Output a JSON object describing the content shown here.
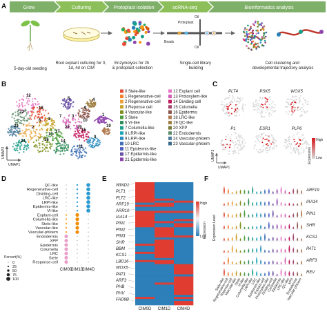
{
  "panels": {
    "a": {
      "letter": "A",
      "steps": [
        "Grow",
        "Culturing",
        "Protoplast isolation",
        "scRNA-seq",
        "Bioinformatics analysis"
      ],
      "beads_label": "Beads",
      "protoplast_label": "Protoplast",
      "oil_label": "Oil",
      "captions": [
        "5-day-old seeding",
        "Root explant culturing for 0, 1d, 4d on CIM",
        "Enzymolysis for 2h & protoplast collection",
        "Single-cell library building",
        "Cell clustering and developmental trajectory analysis"
      ]
    },
    "b": {
      "letter": "B",
      "xlabel": "UMAP1",
      "ylabel": "UMAP2",
      "map_labels": [
        "12",
        "22",
        "18",
        "2",
        "8",
        "17",
        "16",
        "14",
        "3",
        "15",
        "9",
        "5",
        "4",
        "24",
        "11",
        "0",
        "1",
        "19",
        "21",
        "6",
        "13",
        "20",
        "23",
        "10",
        "7"
      ],
      "clusters_left": [
        {
          "label": "0  Stele-like",
          "color": "#e24a33"
        },
        {
          "label": "1  Regenerative-cell",
          "color": "#f08030"
        },
        {
          "label": "2  Regenerative-cell",
          "color": "#e8a33a"
        },
        {
          "label": "3  Reponse cell",
          "color": "#c7a028"
        },
        {
          "label": "4  Vascular-like",
          "color": "#7f8f1f"
        },
        {
          "label": "5  Stele",
          "color": "#4a9d3a"
        },
        {
          "label": "6  VI-like",
          "color": "#2e8b57"
        },
        {
          "label": "7  Columella-like",
          "color": "#1f9e89"
        },
        {
          "label": "8  LRPI-like",
          "color": "#1aa3b5"
        },
        {
          "label": "9  LRPI-like",
          "color": "#2b8cbe"
        },
        {
          "label": "10  LRC",
          "color": "#3f6fb5"
        },
        {
          "label": "11  Epidermis-like",
          "color": "#4b5fbf"
        },
        {
          "label": "17  Epidermis-like",
          "color": "#6a51a3"
        },
        {
          "label": "21  Epidermis-like",
          "color": "#8e44ad"
        }
      ],
      "clusters_right": [
        {
          "label": "12  Explant cell",
          "color": "#e377c2"
        },
        {
          "label": "13  Protoxylem-like",
          "color": "#d35fb7"
        },
        {
          "label": "14  Dividing cell",
          "color": "#c2185b"
        },
        {
          "label": "15  Columella",
          "color": "#a3456b"
        },
        {
          "label": "16  Epidermis",
          "color": "#8c564b"
        },
        {
          "label": "18  LRC-like",
          "color": "#b07a50"
        },
        {
          "label": "19  QC-like",
          "color": "#9d7e3f"
        },
        {
          "label": "20  XPP",
          "color": "#7a7a3a"
        },
        {
          "label": "22  Endodermis",
          "color": "#5e8c6a"
        },
        {
          "label": "24  Vascular-phloem",
          "color": "#4f7f9f"
        },
        {
          "label": "23  Vascular-phloem",
          "color": "#3b6a8a"
        }
      ]
    },
    "c": {
      "letter": "C",
      "genes": [
        "PLT4",
        "PSK5",
        "WOX5",
        "P1",
        "ESR1",
        "PLP6"
      ],
      "xlabel": "UMAP1",
      "ylabel": "UMAP2",
      "legend_title": "Expression",
      "legend_high": "High",
      "legend_low": "Low",
      "high_color": "#d7191c",
      "low_color": "#d9d9d9"
    },
    "d": {
      "letter": "D",
      "rows": [
        "QC-like",
        "Regenerative-cell",
        "Dividing-cell",
        "LRC-like",
        "LRPI-like",
        "Epidermis-like",
        "Vl-like",
        "Explant-cell",
        "Columella-like",
        "Stele-like",
        "Vascular-like",
        "Vascular-phloem",
        "Endodermis",
        "XPP",
        "Epidermis",
        "Columella",
        "LRC",
        "Stele",
        "Response-cell"
      ],
      "cols": [
        "CIM0D",
        "CIM1D",
        "CIM4D"
      ],
      "legend_title": "Percent(%)",
      "legend_values": [
        "0",
        "25",
        "50",
        "75",
        "100"
      ]
    },
    "e": {
      "letter": "E",
      "genes": [
        "WIND1",
        "PLT1",
        "PLT2",
        "ARF19",
        "ARR10",
        "IAA14",
        "PIN1",
        "PIN2",
        "PIN3",
        "SHR",
        "BBM",
        "KCS1",
        "LBD16",
        "WOX5",
        "PAT1",
        "ARF3",
        "PHB",
        "PHV",
        "FAD8B"
      ],
      "cols": [
        "CIM0D",
        "CIM1D",
        "CIM4D"
      ],
      "legend_title": "Expression",
      "legend_high": "High",
      "legend_low": "Low",
      "high_color": "#e03c31",
      "low_color": "#2c7fb8"
    },
    "f": {
      "letter": "F",
      "ylabel": "Expression Level",
      "genes": [
        "ARF19",
        "IAA14",
        "PIN1",
        "SHR",
        "KCS1",
        "PAT1",
        "ARF3",
        "REV"
      ],
      "xticks": [
        "Stele-like",
        "Regenerative-cell",
        "Reponse-cell",
        "Vascular-like",
        "Stele",
        "Vl-like",
        "Columella-like",
        "LRPI-like",
        "LRC",
        "Epidermis-like",
        "Explant-cell",
        "Protoxylem-like",
        "Dividing-cell",
        "Columella",
        "Epidermis",
        "LRC-like",
        "QC-like",
        "XPP",
        "Endodermis",
        "Vascular-phloem"
      ]
    }
  }
}
